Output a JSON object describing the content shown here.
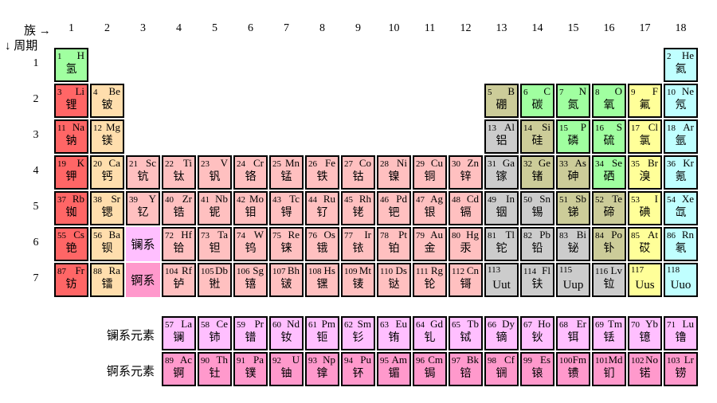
{
  "axis": {
    "group_label": "族 →",
    "period_label": "↓ 周期",
    "groups": [
      "1",
      "2",
      "3",
      "4",
      "5",
      "6",
      "7",
      "8",
      "9",
      "10",
      "11",
      "12",
      "13",
      "14",
      "15",
      "16",
      "17",
      "18"
    ],
    "periods": [
      "1",
      "2",
      "3",
      "4",
      "5",
      "6",
      "7"
    ],
    "lanthanide_row_label": "镧系元素",
    "actinide_row_label": "锕系元素"
  },
  "colors": {
    "alkali": "#ff6666",
    "alkaline": "#ffdead",
    "transition": "#ffc0c0",
    "post_transition": "#cccccc",
    "metalloid": "#cccc99",
    "nonmetal": "#a0ffa0",
    "halogen": "#ffff99",
    "noble": "#c0ffff",
    "lanthanide": "#ffbfff",
    "actinide": "#ff99cc",
    "border": "#000000"
  },
  "placeholders": [
    {
      "label": "镧系",
      "row": 6,
      "col": 3,
      "cat": "lanthanide"
    },
    {
      "label": "锕系",
      "row": 7,
      "col": 3,
      "cat": "actinide"
    }
  ],
  "elements": [
    {
      "z": "1",
      "s": "H",
      "n": "氢",
      "row": 1,
      "col": 1,
      "cat": "nonmetal"
    },
    {
      "z": "2",
      "s": "He",
      "n": "氦",
      "row": 1,
      "col": 18,
      "cat": "noble"
    },
    {
      "z": "3",
      "s": "Li",
      "n": "锂",
      "row": 2,
      "col": 1,
      "cat": "alkali"
    },
    {
      "z": "4",
      "s": "Be",
      "n": "铍",
      "row": 2,
      "col": 2,
      "cat": "alkaline"
    },
    {
      "z": "5",
      "s": "B",
      "n": "硼",
      "row": 2,
      "col": 13,
      "cat": "metalloid"
    },
    {
      "z": "6",
      "s": "C",
      "n": "碳",
      "row": 2,
      "col": 14,
      "cat": "nonmetal"
    },
    {
      "z": "7",
      "s": "N",
      "n": "氮",
      "row": 2,
      "col": 15,
      "cat": "nonmetal"
    },
    {
      "z": "8",
      "s": "O",
      "n": "氧",
      "row": 2,
      "col": 16,
      "cat": "nonmetal"
    },
    {
      "z": "9",
      "s": "F",
      "n": "氟",
      "row": 2,
      "col": 17,
      "cat": "halogen"
    },
    {
      "z": "10",
      "s": "Ne",
      "n": "氖",
      "row": 2,
      "col": 18,
      "cat": "noble"
    },
    {
      "z": "11",
      "s": "Na",
      "n": "钠",
      "row": 3,
      "col": 1,
      "cat": "alkali"
    },
    {
      "z": "12",
      "s": "Mg",
      "n": "镁",
      "row": 3,
      "col": 2,
      "cat": "alkaline"
    },
    {
      "z": "13",
      "s": "Al",
      "n": "铝",
      "row": 3,
      "col": 13,
      "cat": "post_transition"
    },
    {
      "z": "14",
      "s": "Si",
      "n": "硅",
      "row": 3,
      "col": 14,
      "cat": "metalloid"
    },
    {
      "z": "15",
      "s": "P",
      "n": "磷",
      "row": 3,
      "col": 15,
      "cat": "nonmetal"
    },
    {
      "z": "16",
      "s": "S",
      "n": "硫",
      "row": 3,
      "col": 16,
      "cat": "nonmetal"
    },
    {
      "z": "17",
      "s": "Cl",
      "n": "氯",
      "row": 3,
      "col": 17,
      "cat": "halogen"
    },
    {
      "z": "18",
      "s": "Ar",
      "n": "氩",
      "row": 3,
      "col": 18,
      "cat": "noble"
    },
    {
      "z": "19",
      "s": "K",
      "n": "钾",
      "row": 4,
      "col": 1,
      "cat": "alkali"
    },
    {
      "z": "20",
      "s": "Ca",
      "n": "钙",
      "row": 4,
      "col": 2,
      "cat": "alkaline"
    },
    {
      "z": "21",
      "s": "Sc",
      "n": "钪",
      "row": 4,
      "col": 3,
      "cat": "transition"
    },
    {
      "z": "22",
      "s": "Ti",
      "n": "钛",
      "row": 4,
      "col": 4,
      "cat": "transition"
    },
    {
      "z": "23",
      "s": "V",
      "n": "钒",
      "row": 4,
      "col": 5,
      "cat": "transition"
    },
    {
      "z": "24",
      "s": "Cr",
      "n": "铬",
      "row": 4,
      "col": 6,
      "cat": "transition"
    },
    {
      "z": "25",
      "s": "Mn",
      "n": "锰",
      "row": 4,
      "col": 7,
      "cat": "transition"
    },
    {
      "z": "26",
      "s": "Fe",
      "n": "铁",
      "row": 4,
      "col": 8,
      "cat": "transition"
    },
    {
      "z": "27",
      "s": "Co",
      "n": "钴",
      "row": 4,
      "col": 9,
      "cat": "transition"
    },
    {
      "z": "28",
      "s": "Ni",
      "n": "镍",
      "row": 4,
      "col": 10,
      "cat": "transition"
    },
    {
      "z": "29",
      "s": "Cu",
      "n": "铜",
      "row": 4,
      "col": 11,
      "cat": "transition"
    },
    {
      "z": "30",
      "s": "Zn",
      "n": "锌",
      "row": 4,
      "col": 12,
      "cat": "transition"
    },
    {
      "z": "31",
      "s": "Ga",
      "n": "镓",
      "row": 4,
      "col": 13,
      "cat": "post_transition"
    },
    {
      "z": "32",
      "s": "Ge",
      "n": "锗",
      "row": 4,
      "col": 14,
      "cat": "metalloid"
    },
    {
      "z": "33",
      "s": "As",
      "n": "砷",
      "row": 4,
      "col": 15,
      "cat": "metalloid"
    },
    {
      "z": "34",
      "s": "Se",
      "n": "硒",
      "row": 4,
      "col": 16,
      "cat": "nonmetal"
    },
    {
      "z": "35",
      "s": "Br",
      "n": "溴",
      "row": 4,
      "col": 17,
      "cat": "halogen"
    },
    {
      "z": "36",
      "s": "Kr",
      "n": "氪",
      "row": 4,
      "col": 18,
      "cat": "noble"
    },
    {
      "z": "37",
      "s": "Rb",
      "n": "铷",
      "row": 5,
      "col": 1,
      "cat": "alkali"
    },
    {
      "z": "38",
      "s": "Sr",
      "n": "锶",
      "row": 5,
      "col": 2,
      "cat": "alkaline"
    },
    {
      "z": "39",
      "s": "Y",
      "n": "钇",
      "row": 5,
      "col": 3,
      "cat": "transition"
    },
    {
      "z": "40",
      "s": "Zr",
      "n": "锆",
      "row": 5,
      "col": 4,
      "cat": "transition"
    },
    {
      "z": "41",
      "s": "Nb",
      "n": "铌",
      "row": 5,
      "col": 5,
      "cat": "transition"
    },
    {
      "z": "42",
      "s": "Mo",
      "n": "钼",
      "row": 5,
      "col": 6,
      "cat": "transition"
    },
    {
      "z": "43",
      "s": "Tc",
      "n": "锝",
      "row": 5,
      "col": 7,
      "cat": "transition"
    },
    {
      "z": "44",
      "s": "Ru",
      "n": "钌",
      "row": 5,
      "col": 8,
      "cat": "transition"
    },
    {
      "z": "45",
      "s": "Rh",
      "n": "铑",
      "row": 5,
      "col": 9,
      "cat": "transition"
    },
    {
      "z": "46",
      "s": "Pd",
      "n": "钯",
      "row": 5,
      "col": 10,
      "cat": "transition"
    },
    {
      "z": "47",
      "s": "Ag",
      "n": "银",
      "row": 5,
      "col": 11,
      "cat": "transition"
    },
    {
      "z": "48",
      "s": "Cd",
      "n": "镉",
      "row": 5,
      "col": 12,
      "cat": "transition"
    },
    {
      "z": "49",
      "s": "In",
      "n": "铟",
      "row": 5,
      "col": 13,
      "cat": "post_transition"
    },
    {
      "z": "50",
      "s": "Sn",
      "n": "锡",
      "row": 5,
      "col": 14,
      "cat": "post_transition"
    },
    {
      "z": "51",
      "s": "Sb",
      "n": "锑",
      "row": 5,
      "col": 15,
      "cat": "metalloid"
    },
    {
      "z": "52",
      "s": "Te",
      "n": "碲",
      "row": 5,
      "col": 16,
      "cat": "metalloid"
    },
    {
      "z": "53",
      "s": "I",
      "n": "碘",
      "row": 5,
      "col": 17,
      "cat": "halogen"
    },
    {
      "z": "54",
      "s": "Xe",
      "n": "氙",
      "row": 5,
      "col": 18,
      "cat": "noble"
    },
    {
      "z": "55",
      "s": "Cs",
      "n": "铯",
      "row": 6,
      "col": 1,
      "cat": "alkali"
    },
    {
      "z": "56",
      "s": "Ba",
      "n": "钡",
      "row": 6,
      "col": 2,
      "cat": "alkaline"
    },
    {
      "z": "72",
      "s": "Hf",
      "n": "铪",
      "row": 6,
      "col": 4,
      "cat": "transition"
    },
    {
      "z": "73",
      "s": "Ta",
      "n": "钽",
      "row": 6,
      "col": 5,
      "cat": "transition"
    },
    {
      "z": "74",
      "s": "W",
      "n": "钨",
      "row": 6,
      "col": 6,
      "cat": "transition"
    },
    {
      "z": "75",
      "s": "Re",
      "n": "铼",
      "row": 6,
      "col": 7,
      "cat": "transition"
    },
    {
      "z": "76",
      "s": "Os",
      "n": "锇",
      "row": 6,
      "col": 8,
      "cat": "transition"
    },
    {
      "z": "77",
      "s": "Ir",
      "n": "铱",
      "row": 6,
      "col": 9,
      "cat": "transition"
    },
    {
      "z": "78",
      "s": "Pt",
      "n": "铂",
      "row": 6,
      "col": 10,
      "cat": "transition"
    },
    {
      "z": "79",
      "s": "Au",
      "n": "金",
      "row": 6,
      "col": 11,
      "cat": "transition"
    },
    {
      "z": "80",
      "s": "Hg",
      "n": "汞",
      "row": 6,
      "col": 12,
      "cat": "transition"
    },
    {
      "z": "81",
      "s": "Tl",
      "n": "铊",
      "row": 6,
      "col": 13,
      "cat": "post_transition"
    },
    {
      "z": "82",
      "s": "Pb",
      "n": "铅",
      "row": 6,
      "col": 14,
      "cat": "post_transition"
    },
    {
      "z": "83",
      "s": "Bi",
      "n": "铋",
      "row": 6,
      "col": 15,
      "cat": "post_transition"
    },
    {
      "z": "84",
      "s": "Po",
      "n": "钋",
      "row": 6,
      "col": 16,
      "cat": "metalloid"
    },
    {
      "z": "85",
      "s": "At",
      "n": "砹",
      "row": 6,
      "col": 17,
      "cat": "halogen"
    },
    {
      "z": "86",
      "s": "Rn",
      "n": "氡",
      "row": 6,
      "col": 18,
      "cat": "noble"
    },
    {
      "z": "87",
      "s": "Fr",
      "n": "钫",
      "row": 7,
      "col": 1,
      "cat": "alkali"
    },
    {
      "z": "88",
      "s": "Ra",
      "n": "镭",
      "row": 7,
      "col": 2,
      "cat": "alkaline"
    },
    {
      "z": "104",
      "s": "Rf",
      "n": "𬬻",
      "row": 7,
      "col": 4,
      "cat": "transition"
    },
    {
      "z": "105",
      "s": "Db",
      "n": "𬭊",
      "row": 7,
      "col": 5,
      "cat": "transition"
    },
    {
      "z": "106",
      "s": "Sg",
      "n": "𬭳",
      "row": 7,
      "col": 6,
      "cat": "transition"
    },
    {
      "z": "107",
      "s": "Bh",
      "n": "𬭛",
      "row": 7,
      "col": 7,
      "cat": "transition"
    },
    {
      "z": "108",
      "s": "Hs",
      "n": "𬭶",
      "row": 7,
      "col": 8,
      "cat": "transition"
    },
    {
      "z": "109",
      "s": "Mt",
      "n": "鿏",
      "row": 7,
      "col": 9,
      "cat": "transition"
    },
    {
      "z": "110",
      "s": "Ds",
      "n": "𫟼",
      "row": 7,
      "col": 10,
      "cat": "transition"
    },
    {
      "z": "111",
      "s": "Rg",
      "n": "𬬭",
      "row": 7,
      "col": 11,
      "cat": "transition"
    },
    {
      "z": "112",
      "s": "Cn",
      "n": "鿔",
      "row": 7,
      "col": 12,
      "cat": "transition"
    },
    {
      "z": "113",
      "s": "",
      "n": "Uut",
      "row": 7,
      "col": 13,
      "cat": "post_transition"
    },
    {
      "z": "114",
      "s": "Fl",
      "n": "𫓧",
      "row": 7,
      "col": 14,
      "cat": "post_transition"
    },
    {
      "z": "115",
      "s": "",
      "n": "Uup",
      "row": 7,
      "col": 15,
      "cat": "post_transition"
    },
    {
      "z": "116",
      "s": "Lv",
      "n": "𫟷",
      "row": 7,
      "col": 16,
      "cat": "post_transition"
    },
    {
      "z": "117",
      "s": "",
      "n": "Uus",
      "row": 7,
      "col": 17,
      "cat": "halogen"
    },
    {
      "z": "118",
      "s": "",
      "n": "Uuo",
      "row": 7,
      "col": 18,
      "cat": "noble"
    },
    {
      "z": "57",
      "s": "La",
      "n": "镧",
      "row": 8,
      "col": 4,
      "cat": "lanthanide"
    },
    {
      "z": "58",
      "s": "Ce",
      "n": "铈",
      "row": 8,
      "col": 5,
      "cat": "lanthanide"
    },
    {
      "z": "59",
      "s": "Pr",
      "n": "镨",
      "row": 8,
      "col": 6,
      "cat": "lanthanide"
    },
    {
      "z": "60",
      "s": "Nd",
      "n": "钕",
      "row": 8,
      "col": 7,
      "cat": "lanthanide"
    },
    {
      "z": "61",
      "s": "Pm",
      "n": "钷",
      "row": 8,
      "col": 8,
      "cat": "lanthanide"
    },
    {
      "z": "62",
      "s": "Sm",
      "n": "钐",
      "row": 8,
      "col": 9,
      "cat": "lanthanide"
    },
    {
      "z": "63",
      "s": "Eu",
      "n": "铕",
      "row": 8,
      "col": 10,
      "cat": "lanthanide"
    },
    {
      "z": "64",
      "s": "Gd",
      "n": "钆",
      "row": 8,
      "col": 11,
      "cat": "lanthanide"
    },
    {
      "z": "65",
      "s": "Tb",
      "n": "铽",
      "row": 8,
      "col": 12,
      "cat": "lanthanide"
    },
    {
      "z": "66",
      "s": "Dy",
      "n": "镝",
      "row": 8,
      "col": 13,
      "cat": "lanthanide"
    },
    {
      "z": "67",
      "s": "Ho",
      "n": "钬",
      "row": 8,
      "col": 14,
      "cat": "lanthanide"
    },
    {
      "z": "68",
      "s": "Er",
      "n": "铒",
      "row": 8,
      "col": 15,
      "cat": "lanthanide"
    },
    {
      "z": "69",
      "s": "Tm",
      "n": "铥",
      "row": 8,
      "col": 16,
      "cat": "lanthanide"
    },
    {
      "z": "70",
      "s": "Yb",
      "n": "镱",
      "row": 8,
      "col": 17,
      "cat": "lanthanide"
    },
    {
      "z": "71",
      "s": "Lu",
      "n": "镥",
      "row": 8,
      "col": 18,
      "cat": "lanthanide"
    },
    {
      "z": "89",
      "s": "Ac",
      "n": "锕",
      "row": 9,
      "col": 4,
      "cat": "actinide"
    },
    {
      "z": "90",
      "s": "Th",
      "n": "钍",
      "row": 9,
      "col": 5,
      "cat": "actinide"
    },
    {
      "z": "91",
      "s": "Pa",
      "n": "镤",
      "row": 9,
      "col": 6,
      "cat": "actinide"
    },
    {
      "z": "92",
      "s": "U",
      "n": "铀",
      "row": 9,
      "col": 7,
      "cat": "actinide"
    },
    {
      "z": "93",
      "s": "Np",
      "n": "镎",
      "row": 9,
      "col": 8,
      "cat": "actinide"
    },
    {
      "z": "94",
      "s": "Pu",
      "n": "钚",
      "row": 9,
      "col": 9,
      "cat": "actinide"
    },
    {
      "z": "95",
      "s": "Am",
      "n": "镅",
      "row": 9,
      "col": 10,
      "cat": "actinide"
    },
    {
      "z": "96",
      "s": "Cm",
      "n": "锔",
      "row": 9,
      "col": 11,
      "cat": "actinide"
    },
    {
      "z": "97",
      "s": "Bk",
      "n": "锫",
      "row": 9,
      "col": 12,
      "cat": "actinide"
    },
    {
      "z": "98",
      "s": "Cf",
      "n": "锎",
      "row": 9,
      "col": 13,
      "cat": "actinide"
    },
    {
      "z": "99",
      "s": "Es",
      "n": "锿",
      "row": 9,
      "col": 14,
      "cat": "actinide"
    },
    {
      "z": "100",
      "s": "Fm",
      "n": "镄",
      "row": 9,
      "col": 15,
      "cat": "actinide"
    },
    {
      "z": "101",
      "s": "Md",
      "n": "钔",
      "row": 9,
      "col": 16,
      "cat": "actinide"
    },
    {
      "z": "102",
      "s": "No",
      "n": "锘",
      "row": 9,
      "col": 17,
      "cat": "actinide"
    },
    {
      "z": "103",
      "s": "Lr",
      "n": "铹",
      "row": 9,
      "col": 18,
      "cat": "actinide"
    }
  ]
}
